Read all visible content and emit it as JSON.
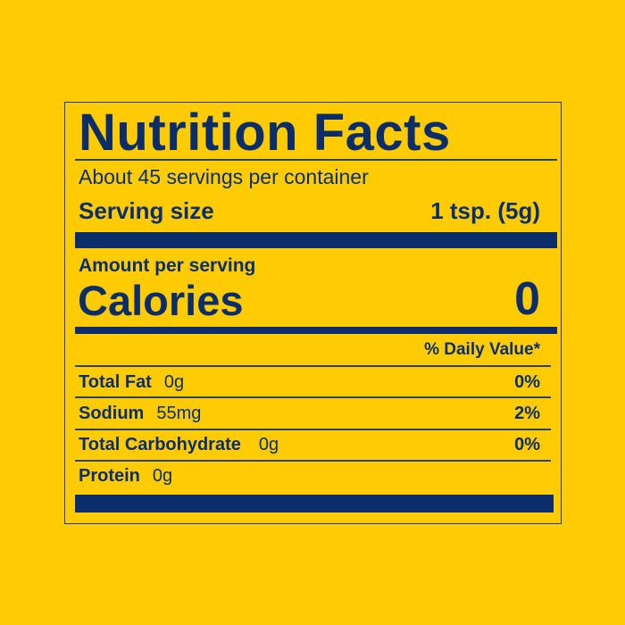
{
  "label": {
    "title": "Nutrition Facts",
    "servings_per_container": "About 45 servings per container",
    "serving_size_label": "Serving size",
    "serving_size_value": "1 tsp. (5g)",
    "amount_per_serving": "Amount per serving",
    "calories_label": "Calories",
    "calories_value": "0",
    "daily_value_header": "% Daily Value*",
    "nutrients": [
      {
        "name": "Total Fat",
        "amount": "0g",
        "dv": "0%"
      },
      {
        "name": "Sodium",
        "amount": "55mg",
        "dv": "2%"
      },
      {
        "name": "Total Carbohydrate",
        "amount": "0g",
        "dv": "0%"
      },
      {
        "name": "Protein",
        "amount": "0g",
        "dv": ""
      }
    ]
  },
  "colors": {
    "background": "#FFCB05",
    "text": "#0B2E6B"
  }
}
